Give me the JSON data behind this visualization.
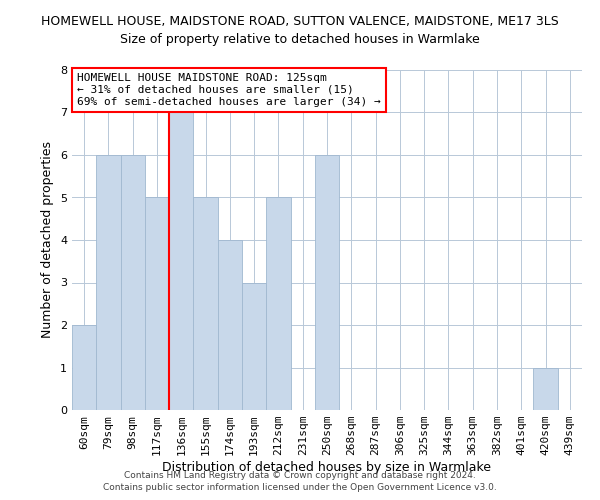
{
  "title_line1": "HOMEWELL HOUSE, MAIDSTONE ROAD, SUTTON VALENCE, MAIDSTONE, ME17 3LS",
  "title_line2": "Size of property relative to detached houses in Warmlake",
  "xlabel": "Distribution of detached houses by size in Warmlake",
  "ylabel": "Number of detached properties",
  "categories": [
    "60sqm",
    "79sqm",
    "98sqm",
    "117sqm",
    "136sqm",
    "155sqm",
    "174sqm",
    "193sqm",
    "212sqm",
    "231sqm",
    "250sqm",
    "268sqm",
    "287sqm",
    "306sqm",
    "325sqm",
    "344sqm",
    "363sqm",
    "382sqm",
    "401sqm",
    "420sqm",
    "439sqm"
  ],
  "values": [
    2,
    6,
    6,
    5,
    7,
    5,
    4,
    3,
    5,
    0,
    6,
    0,
    0,
    0,
    0,
    0,
    0,
    0,
    0,
    1,
    0
  ],
  "bar_color": "#c8d8ea",
  "bar_edge_color": "#a0b8d0",
  "red_line_after_index": 3,
  "ylim": [
    0,
    8
  ],
  "yticks": [
    0,
    1,
    2,
    3,
    4,
    5,
    6,
    7,
    8
  ],
  "annotation_title": "HOMEWELL HOUSE MAIDSTONE ROAD: 125sqm",
  "annotation_line1": "← 31% of detached houses are smaller (15)",
  "annotation_line2": "69% of semi-detached houses are larger (34) →",
  "footer_line1": "Contains HM Land Registry data © Crown copyright and database right 2024.",
  "footer_line2": "Contains public sector information licensed under the Open Government Licence v3.0.",
  "background_color": "#ffffff",
  "grid_color": "#b8c8d8",
  "title1_fontsize": 9,
  "title2_fontsize": 9,
  "ylabel_fontsize": 9,
  "xlabel_fontsize": 9,
  "tick_fontsize": 8,
  "annotation_fontsize": 8
}
